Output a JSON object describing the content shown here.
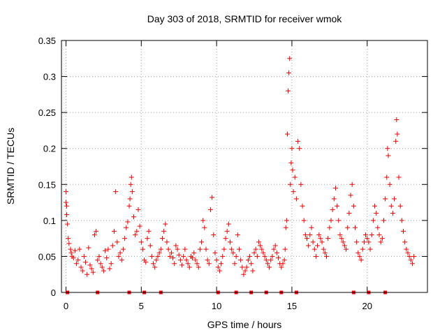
{
  "chart_data": {
    "type": "scatter",
    "title": "Day 303 of 2018, SRMTID for receiver wmok",
    "xlabel": "GPS time / hours",
    "ylabel": "SRMTID / TECUs",
    "xlim": [
      -0.3,
      24
    ],
    "ylim": [
      0,
      0.35
    ],
    "grid": true,
    "marker": "+",
    "color": "#ee0000",
    "x_ticks": [
      {
        "value": 0,
        "label": "0"
      },
      {
        "value": 5,
        "label": "5"
      },
      {
        "value": 10,
        "label": "10"
      },
      {
        "value": 15,
        "label": "15"
      },
      {
        "value": 20,
        "label": "20"
      }
    ],
    "y_ticks": [
      {
        "value": 0,
        "label": "0"
      },
      {
        "value": 0.05,
        "label": "0.05"
      },
      {
        "value": 0.1,
        "label": "0.1"
      },
      {
        "value": 0.15,
        "label": "0.15"
      },
      {
        "value": 0.2,
        "label": "0.2"
      },
      {
        "value": 0.25,
        "label": "0.25"
      },
      {
        "value": 0.3,
        "label": "0.3"
      },
      {
        "value": 0.35,
        "label": "0.35"
      }
    ],
    "baseline_markers_x": [
      0.1,
      2.1,
      4.2,
      5.2,
      6.3,
      10.1,
      11.3,
      12.3,
      13.3,
      14.3,
      15.3,
      19.1,
      20.1,
      21.2
    ],
    "series": [
      {
        "name": "SRMTID",
        "points": [
          [
            0.0,
            0.125
          ],
          [
            0.0,
            0.14
          ],
          [
            0.05,
            0.12
          ],
          [
            0.05,
            0.108
          ],
          [
            0.1,
            0.095
          ],
          [
            0.15,
            0.075
          ],
          [
            0.2,
            0.068
          ],
          [
            0.3,
            0.06
          ],
          [
            0.35,
            0.055
          ],
          [
            0.4,
            0.05
          ],
          [
            0.5,
            0.048
          ],
          [
            0.6,
            0.058
          ],
          [
            0.7,
            0.04
          ],
          [
            0.8,
            0.045
          ],
          [
            0.9,
            0.06
          ],
          [
            1.0,
            0.035
          ],
          [
            1.1,
            0.03
          ],
          [
            1.2,
            0.05
          ],
          [
            1.3,
            0.042
          ],
          [
            1.4,
            0.025
          ],
          [
            1.5,
            0.062
          ],
          [
            1.6,
            0.038
          ],
          [
            1.7,
            0.033
          ],
          [
            1.8,
            0.028
          ],
          [
            1.9,
            0.08
          ],
          [
            2.0,
            0.085
          ],
          [
            2.1,
            0.045
          ],
          [
            2.2,
            0.05
          ],
          [
            2.3,
            0.04
          ],
          [
            2.4,
            0.035
          ],
          [
            2.5,
            0.03
          ],
          [
            2.6,
            0.058
          ],
          [
            2.7,
            0.048
          ],
          [
            2.8,
            0.06
          ],
          [
            2.9,
            0.033
          ],
          [
            3.0,
            0.04
          ],
          [
            3.1,
            0.065
          ],
          [
            3.2,
            0.085
          ],
          [
            3.3,
            0.14
          ],
          [
            3.4,
            0.07
          ],
          [
            3.5,
            0.05
          ],
          [
            3.6,
            0.055
          ],
          [
            3.7,
            0.045
          ],
          [
            3.8,
            0.06
          ],
          [
            3.9,
            0.075
          ],
          [
            4.0,
            0.09
          ],
          [
            4.1,
            0.098
          ],
          [
            4.2,
            0.12
          ],
          [
            4.25,
            0.13
          ],
          [
            4.3,
            0.15
          ],
          [
            4.35,
            0.16
          ],
          [
            4.4,
            0.14
          ],
          [
            4.5,
            0.105
          ],
          [
            4.6,
            0.08
          ],
          [
            4.7,
            0.085
          ],
          [
            4.8,
            0.115
          ],
          [
            4.9,
            0.092
          ],
          [
            5.0,
            0.07
          ],
          [
            5.1,
            0.06
          ],
          [
            5.2,
            0.045
          ],
          [
            5.3,
            0.042
          ],
          [
            5.4,
            0.075
          ],
          [
            5.5,
            0.085
          ],
          [
            5.6,
            0.065
          ],
          [
            5.7,
            0.05
          ],
          [
            5.8,
            0.04
          ],
          [
            5.9,
            0.035
          ],
          [
            6.0,
            0.045
          ],
          [
            6.1,
            0.05
          ],
          [
            6.2,
            0.055
          ],
          [
            6.3,
            0.06
          ],
          [
            6.4,
            0.075
          ],
          [
            6.5,
            0.085
          ],
          [
            6.6,
            0.095
          ],
          [
            6.7,
            0.07
          ],
          [
            6.8,
            0.06
          ],
          [
            6.9,
            0.05
          ],
          [
            7.0,
            0.055
          ],
          [
            7.1,
            0.048
          ],
          [
            7.2,
            0.04
          ],
          [
            7.3,
            0.065
          ],
          [
            7.4,
            0.06
          ],
          [
            7.5,
            0.052
          ],
          [
            7.6,
            0.045
          ],
          [
            7.7,
            0.038
          ],
          [
            7.8,
            0.05
          ],
          [
            7.9,
            0.06
          ],
          [
            8.0,
            0.045
          ],
          [
            8.1,
            0.04
          ],
          [
            8.2,
            0.035
          ],
          [
            8.3,
            0.05
          ],
          [
            8.4,
            0.048
          ],
          [
            8.5,
            0.055
          ],
          [
            8.6,
            0.045
          ],
          [
            8.7,
            0.04
          ],
          [
            8.8,
            0.035
          ],
          [
            8.9,
            0.06
          ],
          [
            9.0,
            0.07
          ],
          [
            9.1,
            0.1
          ],
          [
            9.2,
            0.09
          ],
          [
            9.3,
            0.06
          ],
          [
            9.4,
            0.045
          ],
          [
            9.5,
            0.04
          ],
          [
            9.6,
            0.115
          ],
          [
            9.7,
            0.132
          ],
          [
            9.8,
            0.08
          ],
          [
            9.9,
            0.055
          ],
          [
            10.0,
            0.045
          ],
          [
            10.1,
            0.035
          ],
          [
            10.2,
            0.03
          ],
          [
            10.3,
            0.04
          ],
          [
            10.4,
            0.05
          ],
          [
            10.5,
            0.06
          ],
          [
            10.6,
            0.075
          ],
          [
            10.7,
            0.085
          ],
          [
            10.8,
            0.095
          ],
          [
            10.9,
            0.07
          ],
          [
            11.0,
            0.06
          ],
          [
            11.1,
            0.055
          ],
          [
            11.2,
            0.04
          ],
          [
            11.3,
            0.05
          ],
          [
            11.4,
            0.08
          ],
          [
            11.5,
            0.06
          ],
          [
            11.6,
            0.045
          ],
          [
            11.7,
            0.035
          ],
          [
            11.8,
            0.025
          ],
          [
            11.9,
            0.03
          ],
          [
            12.0,
            0.035
          ],
          [
            12.1,
            0.045
          ],
          [
            12.2,
            0.05
          ],
          [
            12.3,
            0.04
          ],
          [
            12.4,
            0.03
          ],
          [
            12.5,
            0.055
          ],
          [
            12.6,
            0.06
          ],
          [
            12.7,
            0.05
          ],
          [
            12.8,
            0.07
          ],
          [
            12.9,
            0.065
          ],
          [
            13.0,
            0.06
          ],
          [
            13.1,
            0.055
          ],
          [
            13.2,
            0.05
          ],
          [
            13.3,
            0.045
          ],
          [
            13.4,
            0.04
          ],
          [
            13.5,
            0.035
          ],
          [
            13.6,
            0.045
          ],
          [
            13.7,
            0.05
          ],
          [
            13.8,
            0.06
          ],
          [
            13.9,
            0.065
          ],
          [
            14.0,
            0.055
          ],
          [
            14.1,
            0.048
          ],
          [
            14.2,
            0.04
          ],
          [
            14.3,
            0.035
          ],
          [
            14.4,
            0.04
          ],
          [
            14.5,
            0.045
          ],
          [
            14.55,
            0.06
          ],
          [
            14.6,
            0.09
          ],
          [
            14.65,
            0.1
          ],
          [
            14.7,
            0.22
          ],
          [
            14.75,
            0.28
          ],
          [
            14.8,
            0.305
          ],
          [
            14.85,
            0.325
          ],
          [
            14.9,
            0.15
          ],
          [
            14.95,
            0.18
          ],
          [
            15.0,
            0.2
          ],
          [
            15.05,
            0.17
          ],
          [
            15.1,
            0.14
          ],
          [
            15.2,
            0.16
          ],
          [
            15.3,
            0.13
          ],
          [
            15.4,
            0.21
          ],
          [
            15.5,
            0.2
          ],
          [
            15.6,
            0.15
          ],
          [
            15.7,
            0.12
          ],
          [
            15.8,
            0.1
          ],
          [
            15.9,
            0.08
          ],
          [
            16.0,
            0.075
          ],
          [
            16.1,
            0.065
          ],
          [
            16.2,
            0.08
          ],
          [
            16.3,
            0.09
          ],
          [
            16.4,
            0.07
          ],
          [
            16.5,
            0.06
          ],
          [
            16.6,
            0.05
          ],
          [
            16.7,
            0.065
          ],
          [
            16.8,
            0.08
          ],
          [
            16.9,
            0.075
          ],
          [
            17.0,
            0.07
          ],
          [
            17.1,
            0.06
          ],
          [
            17.2,
            0.055
          ],
          [
            17.3,
            0.05
          ],
          [
            17.4,
            0.075
          ],
          [
            17.5,
            0.09
          ],
          [
            17.6,
            0.1
          ],
          [
            17.7,
            0.115
          ],
          [
            17.8,
            0.13
          ],
          [
            17.9,
            0.145
          ],
          [
            18.0,
            0.12
          ],
          [
            18.1,
            0.1
          ],
          [
            18.2,
            0.08
          ],
          [
            18.3,
            0.075
          ],
          [
            18.4,
            0.07
          ],
          [
            18.5,
            0.065
          ],
          [
            18.6,
            0.06
          ],
          [
            18.7,
            0.09
          ],
          [
            18.8,
            0.11
          ],
          [
            18.9,
            0.135
          ],
          [
            19.0,
            0.15
          ],
          [
            19.1,
            0.12
          ],
          [
            19.2,
            0.09
          ],
          [
            19.3,
            0.07
          ],
          [
            19.4,
            0.055
          ],
          [
            19.5,
            0.05
          ],
          [
            19.6,
            0.045
          ],
          [
            19.7,
            0.06
          ],
          [
            19.8,
            0.07
          ],
          [
            19.9,
            0.08
          ],
          [
            20.0,
            0.075
          ],
          [
            20.1,
            0.07
          ],
          [
            20.2,
            0.06
          ],
          [
            20.3,
            0.08
          ],
          [
            20.4,
            0.1
          ],
          [
            20.5,
            0.12
          ],
          [
            20.6,
            0.11
          ],
          [
            20.7,
            0.09
          ],
          [
            20.8,
            0.08
          ],
          [
            20.9,
            0.07
          ],
          [
            21.0,
            0.075
          ],
          [
            21.1,
            0.1
          ],
          [
            21.2,
            0.13
          ],
          [
            21.3,
            0.16
          ],
          [
            21.35,
            0.2
          ],
          [
            21.4,
            0.19
          ],
          [
            21.5,
            0.15
          ],
          [
            21.6,
            0.12
          ],
          [
            21.7,
            0.11
          ],
          [
            21.8,
            0.13
          ],
          [
            21.9,
            0.21
          ],
          [
            21.95,
            0.24
          ],
          [
            22.0,
            0.22
          ],
          [
            22.1,
            0.16
          ],
          [
            22.2,
            0.12
          ],
          [
            22.3,
            0.1
          ],
          [
            22.4,
            0.085
          ],
          [
            22.5,
            0.07
          ],
          [
            22.6,
            0.06
          ],
          [
            22.7,
            0.055
          ],
          [
            22.8,
            0.05
          ],
          [
            22.9,
            0.045
          ],
          [
            23.0,
            0.04
          ],
          [
            23.1,
            0.05
          ]
        ]
      }
    ]
  }
}
